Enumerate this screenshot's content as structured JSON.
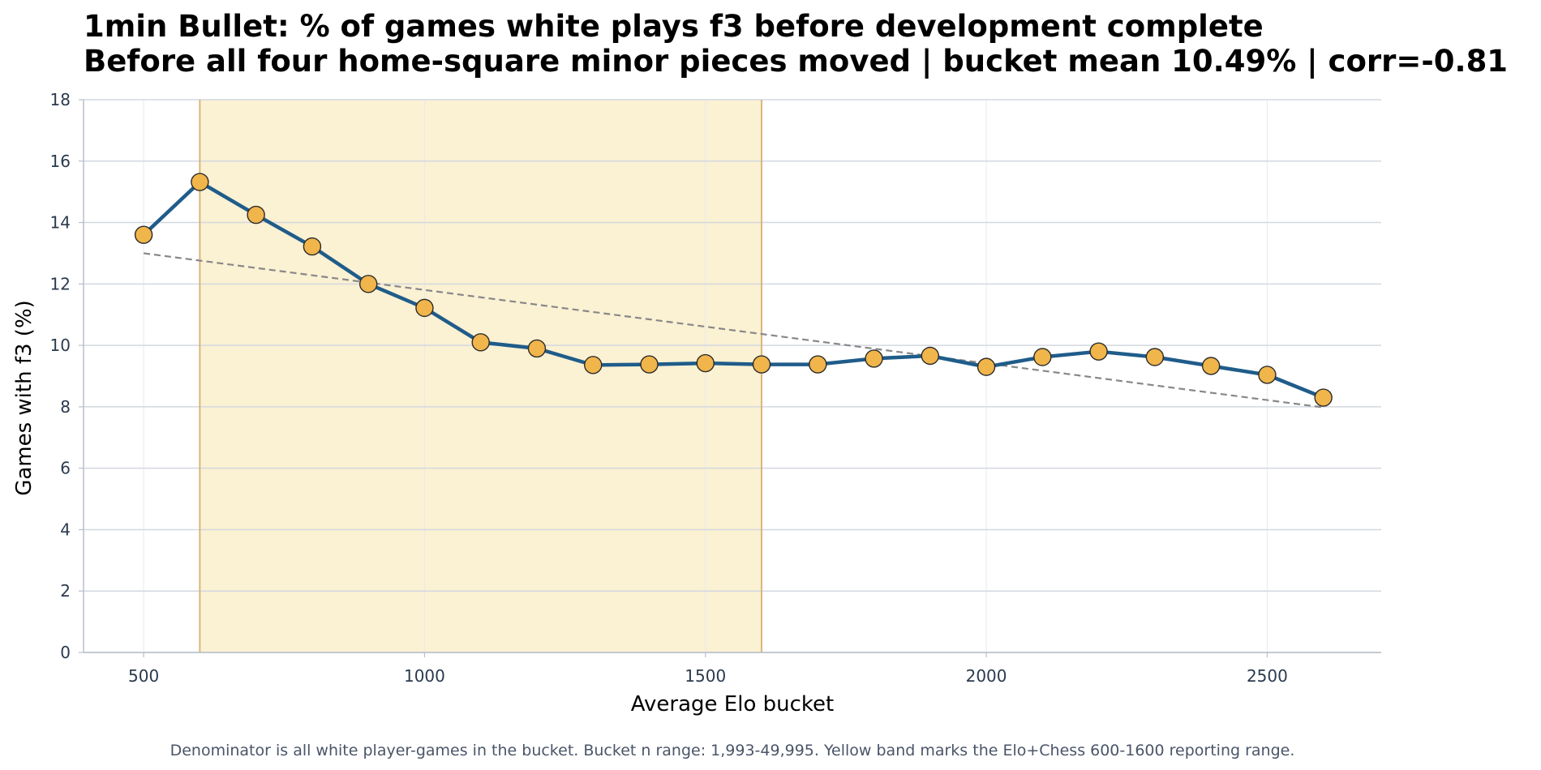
{
  "chart_data": {
    "type": "line",
    "title": "1min Bullet: % of games white plays f3 before development complete",
    "subtitle": "Before all four home-square minor pieces moved | bucket mean 10.49% | corr=-0.81",
    "xlabel": "Average Elo bucket",
    "ylabel": "Games with f3 (%)",
    "xlim": [
      393,
      2703
    ],
    "ylim": [
      0,
      18
    ],
    "x_ticks": [
      500,
      1000,
      1500,
      2000,
      2500
    ],
    "y_ticks": [
      0,
      2,
      4,
      6,
      8,
      10,
      12,
      14,
      16,
      18
    ],
    "x": [
      500,
      600,
      700,
      800,
      900,
      1000,
      1100,
      1200,
      1300,
      1400,
      1500,
      1600,
      1700,
      1800,
      1900,
      2000,
      2100,
      2200,
      2300,
      2400,
      2500,
      2600
    ],
    "series": [
      {
        "values": [
          13.6,
          15.32,
          14.25,
          13.22,
          12.0,
          11.22,
          10.1,
          9.9,
          9.36,
          9.38,
          9.42,
          9.38,
          9.38,
          9.57,
          9.66,
          9.3,
          9.62,
          9.8,
          9.62,
          9.33,
          9.04,
          8.3
        ],
        "line_color": "#1f5c8a",
        "marker_color": "#f0b54b"
      }
    ],
    "trend_line": {
      "x": [
        500,
        2600
      ],
      "values": [
        13.0,
        7.98
      ],
      "color": "#888888",
      "style": "dashed"
    },
    "highlight_band": {
      "x_range": [
        600,
        1600
      ],
      "color": "#fbf1d3",
      "edge_color": "#d6b06e"
    },
    "grid": true,
    "footnote": "Denominator is all white player-games in the bucket. Bucket n range: 1,993-49,995. Yellow band marks the Elo+Chess 600-1600 reporting range."
  }
}
